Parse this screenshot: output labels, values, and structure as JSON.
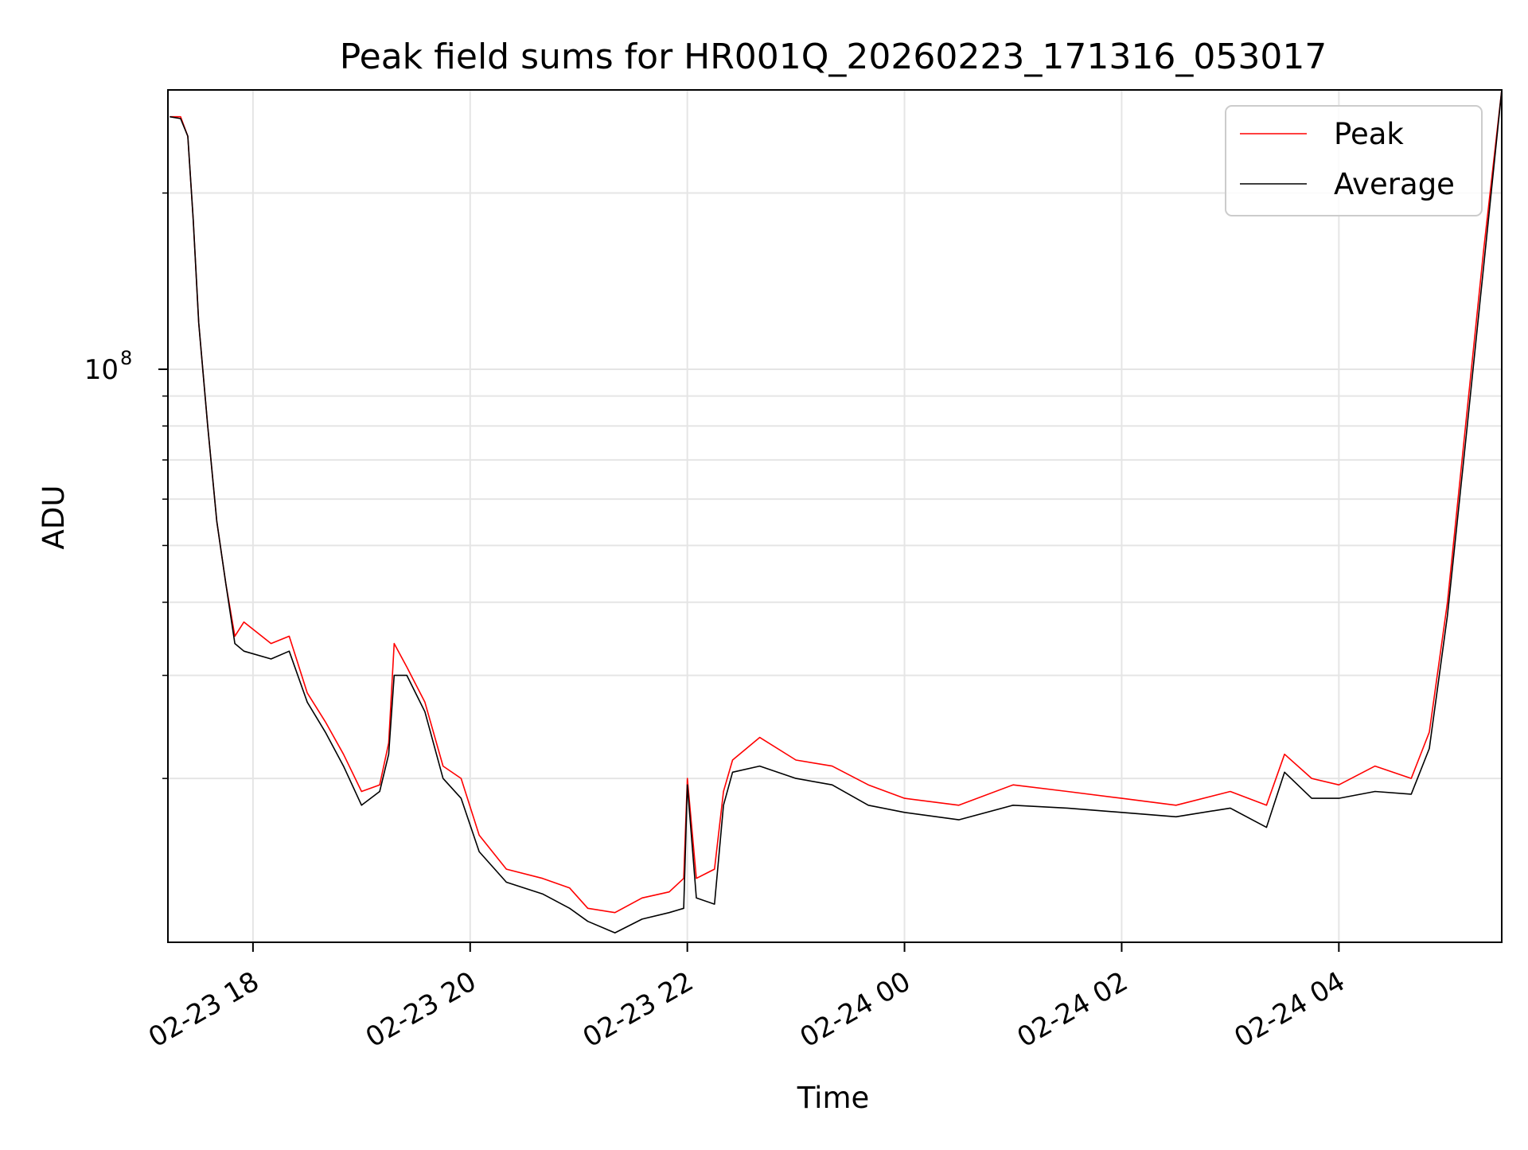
{
  "chart_data": {
    "type": "line",
    "title": "Peak field sums for HR001Q_20260223_171316_053017",
    "xlabel": "Time",
    "ylabel": "ADU",
    "yscale": "log",
    "xlim": [
      "2026-02-23 17:13",
      "2026-02-24 05:30"
    ],
    "ylim": [
      10500000,
      300000000
    ],
    "grid": true,
    "legend_position": "top-right",
    "x_ticks": [
      {
        "at": "2026-02-23 18:00",
        "label": "02-23 18"
      },
      {
        "at": "2026-02-23 20:00",
        "label": "02-23 20"
      },
      {
        "at": "2026-02-23 22:00",
        "label": "02-23 22"
      },
      {
        "at": "2026-02-24 00:00",
        "label": "02-24 00"
      },
      {
        "at": "2026-02-24 02:00",
        "label": "02-24 02"
      },
      {
        "at": "2026-02-24 04:00",
        "label": "02-24 04"
      }
    ],
    "y_major_ticks": [
      {
        "value": 100000000,
        "base": "10",
        "exp": "8"
      }
    ],
    "y_minor_ticks": [
      20000000,
      30000000,
      40000000,
      50000000,
      60000000,
      70000000,
      80000000,
      90000000,
      200000000
    ],
    "series": [
      {
        "name": "Peak",
        "color": "#ff0000",
        "points": [
          [
            "2026-02-23 17:14",
            270000000
          ],
          [
            "2026-02-23 17:20",
            270000000
          ],
          [
            "2026-02-23 17:24",
            250000000
          ],
          [
            "2026-02-23 17:27",
            180000000
          ],
          [
            "2026-02-23 17:30",
            120000000
          ],
          [
            "2026-02-23 17:35",
            80000000
          ],
          [
            "2026-02-23 17:40",
            55000000
          ],
          [
            "2026-02-23 17:45",
            43000000
          ],
          [
            "2026-02-23 17:50",
            35000000
          ],
          [
            "2026-02-23 17:55",
            37000000
          ],
          [
            "2026-02-23 18:10",
            34000000
          ],
          [
            "2026-02-23 18:20",
            35000000
          ],
          [
            "2026-02-23 18:30",
            28000000
          ],
          [
            "2026-02-23 18:40",
            25000000
          ],
          [
            "2026-02-23 18:50",
            22000000
          ],
          [
            "2026-02-23 19:00",
            19000000
          ],
          [
            "2026-02-23 19:10",
            19500000
          ],
          [
            "2026-02-23 19:15",
            23000000
          ],
          [
            "2026-02-23 19:18",
            34000000
          ],
          [
            "2026-02-23 19:25",
            31000000
          ],
          [
            "2026-02-23 19:35",
            27000000
          ],
          [
            "2026-02-23 19:45",
            21000000
          ],
          [
            "2026-02-23 19:55",
            20000000
          ],
          [
            "2026-02-23 20:05",
            16000000
          ],
          [
            "2026-02-23 20:20",
            14000000
          ],
          [
            "2026-02-23 20:40",
            13500000
          ],
          [
            "2026-02-23 20:55",
            13000000
          ],
          [
            "2026-02-23 21:05",
            12000000
          ],
          [
            "2026-02-23 21:20",
            11800000
          ],
          [
            "2026-02-23 21:35",
            12500000
          ],
          [
            "2026-02-23 21:50",
            12800000
          ],
          [
            "2026-02-23 21:58",
            13500000
          ],
          [
            "2026-02-23 22:00",
            20000000
          ],
          [
            "2026-02-23 22:05",
            13500000
          ],
          [
            "2026-02-23 22:15",
            14000000
          ],
          [
            "2026-02-23 22:20",
            19000000
          ],
          [
            "2026-02-23 22:25",
            21500000
          ],
          [
            "2026-02-23 22:40",
            23500000
          ],
          [
            "2026-02-23 23:00",
            21500000
          ],
          [
            "2026-02-23 23:20",
            21000000
          ],
          [
            "2026-02-23 23:40",
            19500000
          ],
          [
            "2026-02-24 00:00",
            18500000
          ],
          [
            "2026-02-24 00:30",
            18000000
          ],
          [
            "2026-02-24 01:00",
            19500000
          ],
          [
            "2026-02-24 01:30",
            19000000
          ],
          [
            "2026-02-24 02:00",
            18500000
          ],
          [
            "2026-02-24 02:30",
            18000000
          ],
          [
            "2026-02-24 03:00",
            19000000
          ],
          [
            "2026-02-24 03:20",
            18000000
          ],
          [
            "2026-02-24 03:30",
            22000000
          ],
          [
            "2026-02-24 03:45",
            20000000
          ],
          [
            "2026-02-24 04:00",
            19500000
          ],
          [
            "2026-02-24 04:20",
            21000000
          ],
          [
            "2026-02-24 04:40",
            20000000
          ],
          [
            "2026-02-24 04:50",
            24000000
          ],
          [
            "2026-02-24 05:00",
            40000000
          ],
          [
            "2026-02-24 05:10",
            80000000
          ],
          [
            "2026-02-24 05:20",
            160000000
          ],
          [
            "2026-02-24 05:30",
            300000000
          ]
        ]
      },
      {
        "name": "Average",
        "color": "#000000",
        "points": [
          [
            "2026-02-23 17:14",
            270000000
          ],
          [
            "2026-02-23 17:20",
            268000000
          ],
          [
            "2026-02-23 17:24",
            250000000
          ],
          [
            "2026-02-23 17:27",
            180000000
          ],
          [
            "2026-02-23 17:30",
            120000000
          ],
          [
            "2026-02-23 17:35",
            80000000
          ],
          [
            "2026-02-23 17:40",
            55000000
          ],
          [
            "2026-02-23 17:45",
            43000000
          ],
          [
            "2026-02-23 17:50",
            34000000
          ],
          [
            "2026-02-23 17:55",
            33000000
          ],
          [
            "2026-02-23 18:10",
            32000000
          ],
          [
            "2026-02-23 18:20",
            33000000
          ],
          [
            "2026-02-23 18:30",
            27000000
          ],
          [
            "2026-02-23 18:40",
            24000000
          ],
          [
            "2026-02-23 18:50",
            21000000
          ],
          [
            "2026-02-23 19:00",
            18000000
          ],
          [
            "2026-02-23 19:10",
            19000000
          ],
          [
            "2026-02-23 19:15",
            22000000
          ],
          [
            "2026-02-23 19:18",
            30000000
          ],
          [
            "2026-02-23 19:25",
            30000000
          ],
          [
            "2026-02-23 19:35",
            26000000
          ],
          [
            "2026-02-23 19:45",
            20000000
          ],
          [
            "2026-02-23 19:55",
            18500000
          ],
          [
            "2026-02-23 20:05",
            15000000
          ],
          [
            "2026-02-23 20:20",
            13300000
          ],
          [
            "2026-02-23 20:40",
            12700000
          ],
          [
            "2026-02-23 20:55",
            12000000
          ],
          [
            "2026-02-23 21:05",
            11400000
          ],
          [
            "2026-02-23 21:20",
            10900000
          ],
          [
            "2026-02-23 21:35",
            11500000
          ],
          [
            "2026-02-23 21:50",
            11800000
          ],
          [
            "2026-02-23 21:58",
            12000000
          ],
          [
            "2026-02-23 22:00",
            19500000
          ],
          [
            "2026-02-23 22:05",
            12500000
          ],
          [
            "2026-02-23 22:15",
            12200000
          ],
          [
            "2026-02-23 22:20",
            18000000
          ],
          [
            "2026-02-23 22:25",
            20500000
          ],
          [
            "2026-02-23 22:40",
            21000000
          ],
          [
            "2026-02-23 23:00",
            20000000
          ],
          [
            "2026-02-23 23:20",
            19500000
          ],
          [
            "2026-02-23 23:40",
            18000000
          ],
          [
            "2026-02-24 00:00",
            17500000
          ],
          [
            "2026-02-24 00:30",
            17000000
          ],
          [
            "2026-02-24 01:00",
            18000000
          ],
          [
            "2026-02-24 01:30",
            17800000
          ],
          [
            "2026-02-24 02:00",
            17500000
          ],
          [
            "2026-02-24 02:30",
            17200000
          ],
          [
            "2026-02-24 03:00",
            17800000
          ],
          [
            "2026-02-24 03:20",
            16500000
          ],
          [
            "2026-02-24 03:30",
            20500000
          ],
          [
            "2026-02-24 03:45",
            18500000
          ],
          [
            "2026-02-24 04:00",
            18500000
          ],
          [
            "2026-02-24 04:20",
            19000000
          ],
          [
            "2026-02-24 04:40",
            18800000
          ],
          [
            "2026-02-24 04:50",
            22500000
          ],
          [
            "2026-02-24 05:00",
            38000000
          ],
          [
            "2026-02-24 05:10",
            75000000
          ],
          [
            "2026-02-24 05:20",
            150000000
          ],
          [
            "2026-02-24 05:30",
            300000000
          ]
        ]
      }
    ]
  }
}
